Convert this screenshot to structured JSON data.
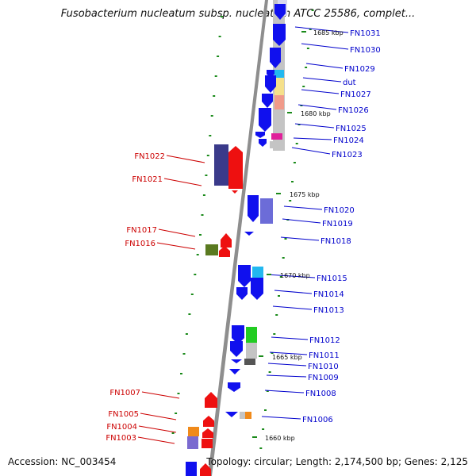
{
  "header": {
    "title": "Fusobacterium nucleatum subsp. nucleatum ATCC 25586, complet..."
  },
  "footer": {
    "accession_label": "Accession:",
    "accession": "NC_003454",
    "topology_label": "Topology:",
    "topology": "circular;",
    "length_label": "Length:",
    "length": "2,174,500 bp;",
    "genes_label": "Genes:",
    "genes": "2,125"
  },
  "colors": {
    "forward_gene_label": "#0000cc",
    "reverse_gene_label": "#cc0000",
    "forward_gene": "#1010ee",
    "reverse_gene": "#ee1010",
    "backbone": "#888888",
    "tick": "#1a8a1a"
  },
  "ticks": [
    "1660 kbp",
    "1665 kbp",
    "1670 kbp",
    "1675 kbp",
    "1680 kbp",
    "1685 kbp"
  ],
  "forward_genes": [
    "FN1031",
    "FN1030",
    "FN1029",
    "dut",
    "FN1027",
    "FN1026",
    "FN1025",
    "FN1024",
    "FN1023",
    "FN1020",
    "FN1019",
    "FN1018",
    "FN1015",
    "FN1014",
    "FN1013",
    "FN1012",
    "FN1011",
    "FN1010",
    "FN1009",
    "FN1008",
    "FN1006"
  ],
  "reverse_genes": [
    "FN1022",
    "FN1021",
    "FN1017",
    "FN1016",
    "FN1007",
    "FN1005",
    "FN1004",
    "FN1003"
  ]
}
